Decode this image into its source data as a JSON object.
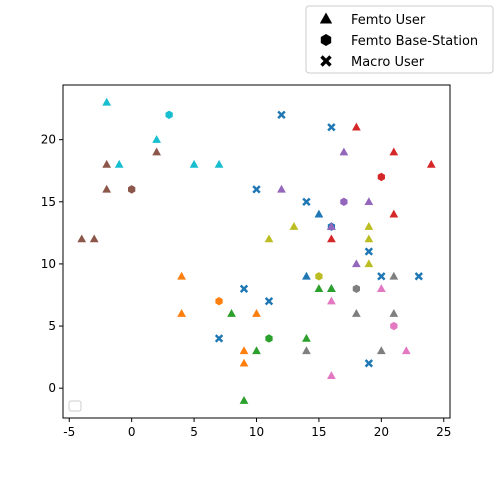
{
  "chart_data": {
    "type": "scatter",
    "xlim": [
      -5.5,
      25.5
    ],
    "ylim": [
      -2.4,
      24.4
    ],
    "xticks": [
      -5,
      0,
      5,
      10,
      15,
      20,
      25
    ],
    "yticks": [
      0,
      5,
      10,
      15,
      20
    ],
    "grid": false,
    "legend": {
      "placement": "top-right, above plot",
      "entries": [
        {
          "label": "Femto User",
          "marker": "triangle"
        },
        {
          "label": "Femto Base-Station",
          "marker": "hexagon"
        },
        {
          "label": "Macro User",
          "marker": "x"
        }
      ]
    },
    "empty_legend_placement": "lower-left",
    "series": [
      {
        "color": "#1f77b4",
        "femto_users": [
          [
            15,
            14
          ],
          [
            14,
            9
          ],
          [
            16,
            8
          ],
          [
            16,
            13
          ]
        ],
        "femto_base_stations": [
          [
            16,
            13
          ]
        ],
        "macro_users": [
          [
            7,
            4
          ],
          [
            9,
            8
          ],
          [
            11,
            7
          ],
          [
            10,
            16
          ],
          [
            12,
            22
          ],
          [
            14,
            15
          ],
          [
            16,
            21
          ],
          [
            19,
            11
          ],
          [
            19,
            2
          ],
          [
            20,
            9
          ],
          [
            23,
            9
          ]
        ]
      },
      {
        "color": "#ff7f0e",
        "femto_users": [
          [
            4,
            9
          ],
          [
            4,
            6
          ],
          [
            10,
            6
          ],
          [
            9,
            3
          ],
          [
            9,
            2
          ]
        ],
        "femto_base_stations": [
          [
            7,
            7
          ]
        ],
        "macro_users": []
      },
      {
        "color": "#2ca02c",
        "femto_users": [
          [
            8,
            6
          ],
          [
            10,
            3
          ],
          [
            9,
            -1
          ],
          [
            14,
            4
          ],
          [
            15,
            8
          ],
          [
            16,
            8
          ]
        ],
        "femto_base_stations": [
          [
            11,
            4
          ]
        ],
        "macro_users": []
      },
      {
        "color": "#d62728",
        "femto_users": [
          [
            18,
            21
          ],
          [
            21,
            19
          ],
          [
            24,
            18
          ],
          [
            21,
            14
          ],
          [
            16,
            12
          ]
        ],
        "femto_base_stations": [
          [
            20,
            17
          ]
        ],
        "macro_users": []
      },
      {
        "color": "#9467bd",
        "femto_users": [
          [
            17,
            19
          ],
          [
            12,
            16
          ],
          [
            19,
            15
          ],
          [
            16,
            13
          ],
          [
            18,
            10
          ]
        ],
        "femto_base_stations": [
          [
            17,
            15
          ]
        ],
        "macro_users": []
      },
      {
        "color": "#8c564b",
        "femto_users": [
          [
            -2,
            18
          ],
          [
            2,
            19
          ],
          [
            -2,
            16
          ],
          [
            -4,
            12
          ],
          [
            -3,
            12
          ]
        ],
        "femto_base_stations": [
          [
            0,
            16
          ]
        ],
        "macro_users": []
      },
      {
        "color": "#e377c2",
        "femto_users": [
          [
            16,
            7
          ],
          [
            20,
            8
          ],
          [
            22,
            3
          ],
          [
            16,
            1
          ]
        ],
        "femto_base_stations": [
          [
            21,
            5
          ]
        ],
        "macro_users": []
      },
      {
        "color": "#7f7f7f",
        "femto_users": [
          [
            14,
            3
          ],
          [
            18,
            6
          ],
          [
            21,
            9
          ],
          [
            21,
            6
          ],
          [
            20,
            3
          ]
        ],
        "femto_base_stations": [
          [
            18,
            8
          ]
        ],
        "macro_users": []
      },
      {
        "color": "#bcbd22",
        "femto_users": [
          [
            11,
            12
          ],
          [
            13,
            13
          ],
          [
            19,
            13
          ],
          [
            19,
            12
          ],
          [
            19,
            10
          ]
        ],
        "femto_base_stations": [
          [
            15,
            9
          ]
        ],
        "macro_users": []
      },
      {
        "color": "#17becf",
        "femto_users": [
          [
            -2,
            23
          ],
          [
            2,
            20
          ],
          [
            -1,
            18
          ],
          [
            5,
            18
          ],
          [
            7,
            18
          ]
        ],
        "femto_base_stations": [
          [
            3,
            22
          ]
        ],
        "macro_users": []
      }
    ]
  }
}
